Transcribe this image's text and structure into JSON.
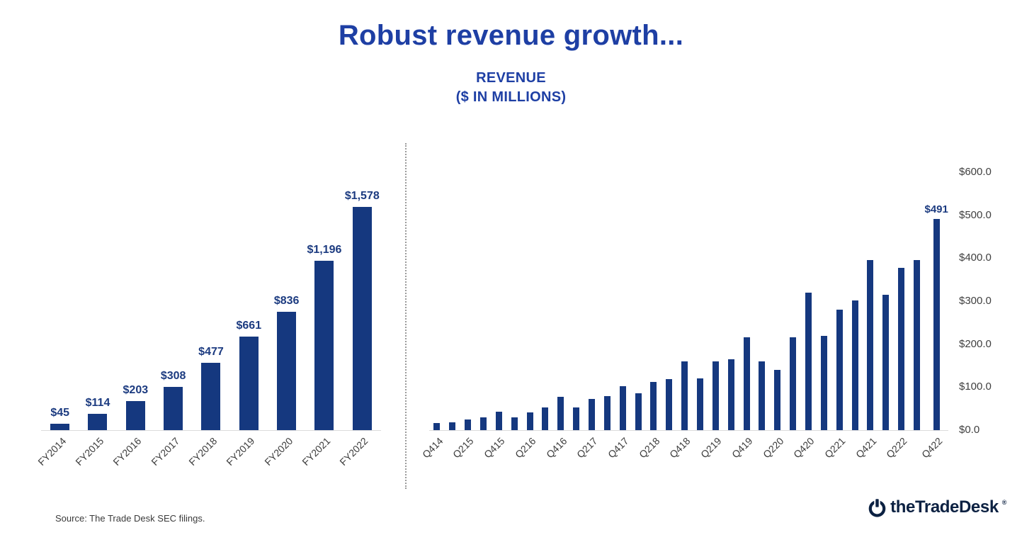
{
  "header": {
    "title": "Robust revenue growth...",
    "subtitle_line1": "REVENUE",
    "subtitle_line2": "($ IN MILLIONS)"
  },
  "colors": {
    "title": "#1e3fa4",
    "bar": "#15387f",
    "value_label": "#1c3b80",
    "axis_text": "#3f3f3f"
  },
  "chart_data": [
    {
      "type": "bar",
      "name": "annual-revenue",
      "title": "Annual revenue ($ in millions)",
      "categories": [
        "FY2014",
        "FY2015",
        "FY2016",
        "FY2017",
        "FY2018",
        "FY2019",
        "FY2020",
        "FY2021",
        "FY2022"
      ],
      "values": [
        45,
        114,
        203,
        308,
        477,
        661,
        836,
        1196,
        1578
      ],
      "value_labels": [
        "$45",
        "$114",
        "$203",
        "$308",
        "$477",
        "$661",
        "$836",
        "$1,196",
        "$1,578"
      ],
      "ylim": [
        0,
        1650
      ],
      "grid": false,
      "legend": "none"
    },
    {
      "type": "bar",
      "name": "quarterly-revenue",
      "title": "Quarterly revenue ($ in millions)",
      "categories": [
        "Q414",
        "Q115",
        "Q215",
        "Q315",
        "Q415",
        "Q116",
        "Q216",
        "Q316",
        "Q416",
        "Q117",
        "Q217",
        "Q317",
        "Q417",
        "Q118",
        "Q218",
        "Q318",
        "Q418",
        "Q119",
        "Q219",
        "Q319",
        "Q419",
        "Q120",
        "Q220",
        "Q320",
        "Q420",
        "Q121",
        "Q221",
        "Q321",
        "Q421",
        "Q122",
        "Q222",
        "Q322",
        "Q422"
      ],
      "values": [
        16.8,
        18.0,
        24.2,
        29.5,
        42.1,
        30.4,
        41.9,
        53.0,
        77.6,
        53.4,
        72.8,
        79.4,
        102.6,
        85.7,
        112.3,
        118.8,
        160.5,
        121.0,
        159.9,
        164.2,
        215.9,
        160.7,
        139.4,
        216.1,
        319.9,
        219.8,
        280.0,
        301.1,
        395.6,
        315.3,
        377.0,
        394.8,
        490.7
      ],
      "x_tick_labels": [
        "Q414",
        "Q215",
        "Q415",
        "Q216",
        "Q416",
        "Q217",
        "Q417",
        "Q218",
        "Q418",
        "Q219",
        "Q419",
        "Q220",
        "Q420",
        "Q221",
        "Q421",
        "Q222",
        "Q422"
      ],
      "x_tick_every": 2,
      "last_value_label": "$491",
      "y_tick_labels": [
        "$0.0",
        "$100.0",
        "$200.0",
        "$300.0",
        "$400.0",
        "$500.0",
        "$600.0"
      ],
      "y_tick_values": [
        0,
        100,
        200,
        300,
        400,
        500,
        600
      ],
      "ylim": [
        0,
        600
      ],
      "grid": false,
      "legend": "none"
    }
  ],
  "footer": {
    "source": "Source: The Trade Desk SEC filings.",
    "logo_text": "theTradeDesk",
    "logo_mark": "®"
  }
}
